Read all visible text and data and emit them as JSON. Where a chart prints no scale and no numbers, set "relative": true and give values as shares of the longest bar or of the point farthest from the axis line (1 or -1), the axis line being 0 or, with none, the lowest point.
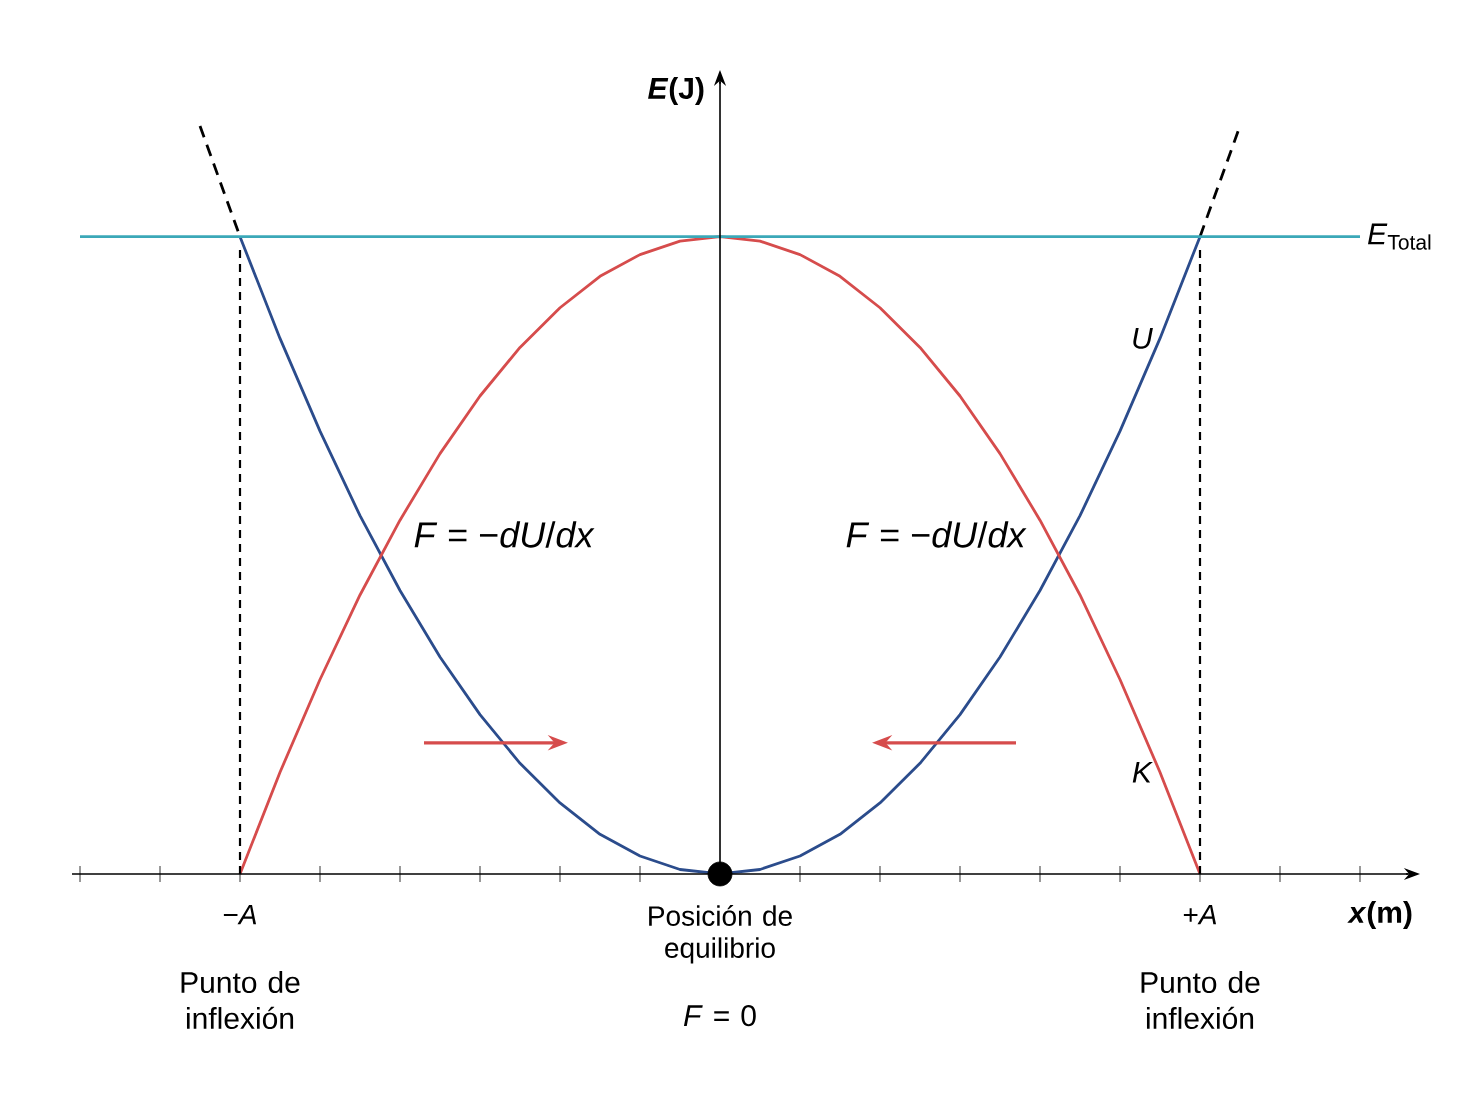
{
  "chart_data": {
    "type": "line",
    "relative": true,
    "xlabel": "*x*(m)",
    "ylabel": "*E*(J)",
    "categories": [
      null,
      null,
      null,
      null,
      "−*A*",
      null,
      null,
      null,
      null,
      null,
      null,
      null,
      null,
      null,
      null,
      null,
      "Posición de equilibrio",
      null,
      null,
      null,
      null,
      null,
      null,
      null,
      null,
      null,
      null,
      null,
      "+*A*",
      null,
      null,
      null,
      null
    ],
    "legend": false,
    "series": [
      {
        "name": "*U*",
        "color": "#2b4c8c",
        "values": [
          null,
          null,
          null,
          null,
          0.852,
          0.716,
          0.592,
          0.479,
          0.379,
          0.29,
          0.213,
          0.148,
          0.095,
          0.053,
          0.024,
          0.006,
          0,
          0.006,
          0.024,
          0.053,
          0.095,
          0.148,
          0.213,
          0.29,
          0.379,
          0.479,
          0.592,
          0.716,
          0.852,
          null,
          null,
          null,
          null
        ]
      },
      {
        "name": "*K*",
        "color": "#d64c4c",
        "values": [
          null,
          null,
          null,
          null,
          0,
          0.136,
          0.26,
          0.373,
          0.473,
          0.562,
          0.639,
          0.704,
          0.757,
          0.799,
          0.828,
          0.846,
          0.852,
          0.846,
          0.828,
          0.799,
          0.757,
          0.704,
          0.639,
          0.562,
          0.473,
          0.373,
          0.26,
          0.136,
          0,
          null,
          null,
          null,
          null
        ]
      },
      {
        "color": "#000000",
        "line_style": "dashed",
        "values": [
          null,
          null,
          null,
          1,
          0.852,
          null,
          null,
          null,
          null,
          null,
          null,
          null,
          null,
          null,
          null,
          null,
          null,
          null,
          null,
          null,
          null,
          null,
          null,
          null,
          null,
          null,
          null,
          null,
          null,
          null,
          null,
          null,
          null
        ]
      },
      {
        "color": "#000000",
        "line_style": "dashed",
        "values": [
          null,
          null,
          null,
          null,
          null,
          null,
          null,
          null,
          null,
          null,
          null,
          null,
          null,
          null,
          null,
          null,
          null,
          null,
          null,
          null,
          null,
          null,
          null,
          null,
          null,
          null,
          null,
          null,
          0.852,
          1,
          null,
          null,
          null
        ]
      },
      {
        "type": "scatter",
        "marker": "circle",
        "color": "#000000",
        "values": [
          null,
          null,
          null,
          null,
          null,
          null,
          null,
          null,
          null,
          null,
          null,
          null,
          null,
          null,
          null,
          null,
          0,
          null,
          null,
          null,
          null,
          null,
          null,
          null,
          null,
          null,
          null,
          null,
          null,
          null,
          null,
          null,
          null
        ]
      }
    ],
    "ref_lines": [
      {
        "axis": "y",
        "value": 0.852,
        "label": "*E*$_{Total}$",
        "color": "#3ba8b8"
      },
      {
        "axis": "x",
        "value": "−*A*",
        "color": "#000000",
        "line_style": "dashed"
      },
      {
        "axis": "x",
        "value": "+*A*",
        "color": "#000000",
        "line_style": "dashed"
      }
    ],
    "annotations": [
      "*F* = −*dU*/*dx*",
      "*F* = −*dU*/*dx*",
      "Punto de inflexión",
      "Punto de inflexión",
      "*F* = 0"
    ]
  }
}
